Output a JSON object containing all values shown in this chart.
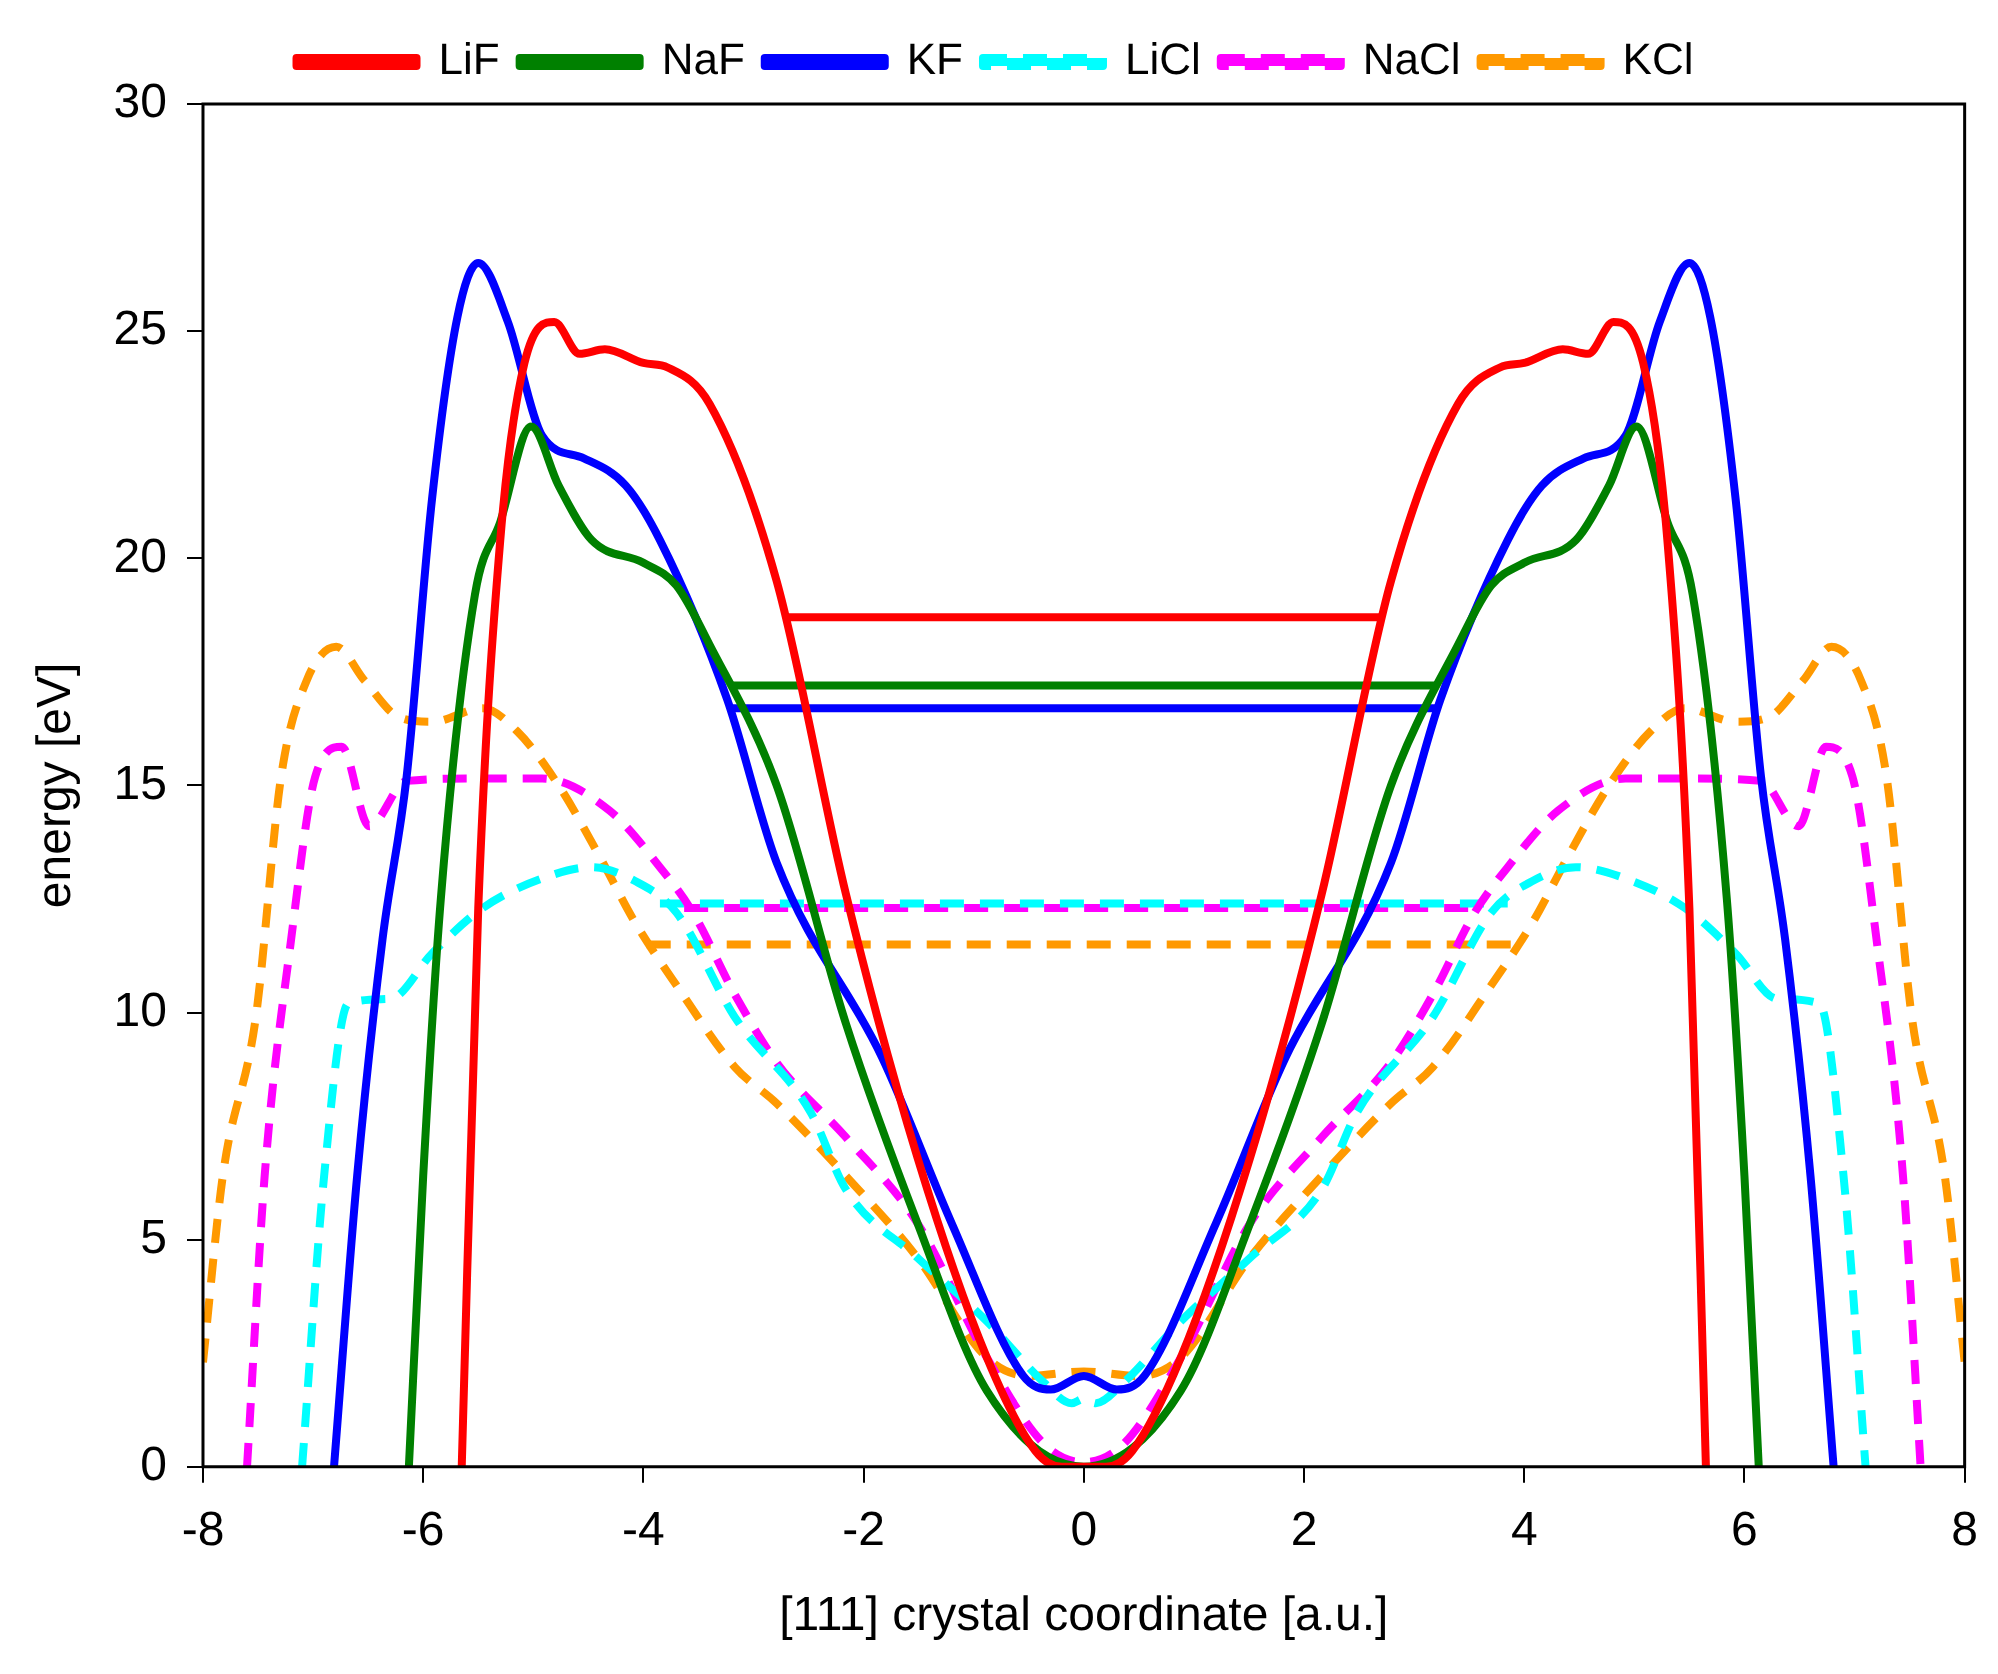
{
  "chart_data": {
    "type": "line",
    "xlabel": "[111] crystal coordinate [a.u.]",
    "ylabel": "energy [eV]",
    "xlim": [
      -8,
      8
    ],
    "xticks": [
      -8,
      -6,
      -4,
      -2,
      0,
      2,
      4,
      6,
      8
    ],
    "ylim": [
      0,
      30
    ],
    "yticks": [
      0,
      5,
      10,
      15,
      20,
      25,
      30
    ],
    "grid": false,
    "legend": "top",
    "marker": "none",
    "series": [
      {
        "name": "LiF",
        "color": "#ff0000",
        "line_style": "solid",
        "x": [
          -5.65,
          -5.5,
          -5.3,
          -5.08,
          -4.81,
          -4.58,
          -4.35,
          -4.0,
          -3.78,
          -3.4,
          -2.79,
          -2.16,
          -1.51,
          -0.88,
          -0.44,
          -0.2,
          0,
          0.2,
          0.44,
          0.88,
          1.51,
          2.16,
          2.79,
          3.4,
          3.78,
          4.0,
          4.35,
          4.58,
          4.81,
          5.08,
          5.3,
          5.5,
          5.65
        ],
        "values": [
          0,
          12.3,
          20.4,
          24.3,
          25.2,
          24.5,
          24.6,
          24.3,
          24.2,
          23.4,
          19.5,
          12.6,
          6.8,
          2.4,
          0.35,
          0,
          0,
          0,
          0.35,
          2.4,
          6.8,
          12.6,
          19.5,
          23.4,
          24.2,
          24.3,
          24.6,
          24.5,
          25.2,
          24.3,
          20.4,
          12.3,
          0
        ]
      },
      {
        "name": "NaF",
        "color": "#008000",
        "line_style": "solid",
        "x": [
          -6.13,
          -6.0,
          -5.84,
          -5.53,
          -5.3,
          -5.02,
          -4.77,
          -4.47,
          -4.0,
          -3.7,
          -3.4,
          -2.79,
          -2.16,
          -1.51,
          -0.88,
          0,
          0.88,
          1.51,
          2.16,
          2.79,
          3.4,
          3.7,
          4.0,
          4.47,
          4.77,
          5.02,
          5.3,
          5.53,
          5.84,
          6.0,
          6.13
        ],
        "values": [
          0,
          6.4,
          12.5,
          19.2,
          20.8,
          22.9,
          21.6,
          20.4,
          19.9,
          19.4,
          18.1,
          15.0,
          9.75,
          5.36,
          1.67,
          0,
          1.67,
          5.36,
          9.75,
          15.0,
          18.1,
          19.4,
          19.9,
          20.4,
          21.6,
          22.9,
          20.8,
          19.2,
          12.5,
          6.4,
          0
        ]
      },
      {
        "name": "KF",
        "color": "#0000ff",
        "line_style": "solid",
        "x": [
          -6.81,
          -6.6,
          -6.37,
          -6.15,
          -5.92,
          -5.69,
          -5.5,
          -5.23,
          -4.92,
          -4.54,
          -4.16,
          -3.85,
          -3.24,
          -2.79,
          -1.83,
          -1.2,
          -0.55,
          -0.3,
          0,
          0.3,
          0.55,
          1.2,
          1.83,
          2.79,
          3.24,
          3.85,
          4.16,
          4.54,
          4.92,
          5.23,
          5.5,
          5.69,
          5.92,
          6.15,
          6.37,
          6.6,
          6.81
        ],
        "values": [
          0,
          6.4,
          11.6,
          15.2,
          21.3,
          25.3,
          26.5,
          25.2,
          22.7,
          22.2,
          21.6,
          20.4,
          16.9,
          13.3,
          9.0,
          5.36,
          2.0,
          1.7,
          2.0,
          1.7,
          2.0,
          5.36,
          9.0,
          13.3,
          16.9,
          20.4,
          21.6,
          22.2,
          22.7,
          25.2,
          26.5,
          25.3,
          21.3,
          15.2,
          11.6,
          6.4,
          0
        ]
      },
      {
        "name": "LiCl",
        "color": "#00ffff",
        "line_style": "dashed",
        "x": [
          -7.1,
          -6.9,
          -6.68,
          -6.3,
          -5.92,
          -5.46,
          -4.92,
          -4.47,
          -4.08,
          -3.7,
          -3.17,
          -2.48,
          -2.16,
          -1.51,
          -0.88,
          -0.36,
          -0.11,
          0,
          0.11,
          0.36,
          0.88,
          1.51,
          2.16,
          2.48,
          3.17,
          3.7,
          4.08,
          4.47,
          4.92,
          5.46,
          5.92,
          6.3,
          6.68,
          6.9,
          7.1
        ],
        "values": [
          0,
          6.4,
          10.2,
          10.3,
          11.3,
          12.3,
          12.95,
          13.2,
          12.9,
          12.2,
          9.9,
          7.8,
          6.1,
          4.6,
          3.2,
          1.85,
          1.4,
          1.5,
          1.4,
          1.85,
          3.2,
          4.6,
          6.1,
          7.8,
          9.9,
          12.2,
          12.9,
          13.2,
          12.95,
          12.3,
          11.3,
          10.3,
          10.2,
          6.4,
          0
        ]
      },
      {
        "name": "NaCl",
        "color": "#ff00ff",
        "line_style": "dashed",
        "x": [
          -7.6,
          -7.44,
          -7.2,
          -6.98,
          -6.74,
          -6.49,
          -6.15,
          -5.53,
          -4.92,
          -4.31,
          -3.85,
          -3.55,
          -3.17,
          -2.79,
          -2.16,
          -1.51,
          -0.88,
          -0.36,
          0,
          0.36,
          0.88,
          1.51,
          2.16,
          2.79,
          3.17,
          3.55,
          3.85,
          4.31,
          4.92,
          5.53,
          6.15,
          6.49,
          6.74,
          6.98,
          7.2,
          7.44,
          7.6
        ],
        "values": [
          0,
          6.4,
          11.6,
          15.2,
          15.85,
          14.1,
          15.1,
          15.15,
          15.15,
          14.45,
          13.2,
          12.2,
          10.4,
          8.9,
          7.25,
          5.36,
          2.4,
          0.5,
          0.1,
          0.5,
          2.4,
          5.36,
          7.25,
          8.9,
          10.4,
          12.2,
          13.2,
          14.45,
          15.15,
          15.15,
          15.1,
          14.1,
          15.85,
          15.2,
          11.6,
          6.4,
          0
        ]
      },
      {
        "name": "KCl",
        "color": "#ff9900",
        "line_style": "dashed",
        "x": [
          -8,
          -7.82,
          -7.52,
          -7.29,
          -7.06,
          -6.79,
          -6.53,
          -6.22,
          -5.92,
          -5.46,
          -5.15,
          -4.77,
          -4.39,
          -4.08,
          -3.7,
          -3.17,
          -2.79,
          -2.16,
          -1.51,
          -0.88,
          -0.5,
          0,
          0.5,
          0.88,
          1.51,
          2.16,
          2.79,
          3.17,
          3.7,
          4.08,
          4.39,
          4.77,
          5.15,
          5.46,
          5.92,
          6.22,
          6.53,
          6.79,
          7.06,
          7.29,
          7.52,
          7.82,
          8
        ],
        "values": [
          2.3,
          6.4,
          9.9,
          15.2,
          17.3,
          18.05,
          17.3,
          16.5,
          16.4,
          16.7,
          16.2,
          15.0,
          13.4,
          12.0,
          10.6,
          8.8,
          8.0,
          6.4,
          4.6,
          2.4,
          2.0,
          2.1,
          2.0,
          2.4,
          4.6,
          6.4,
          8.0,
          8.8,
          10.6,
          12.0,
          13.4,
          15.0,
          16.2,
          16.7,
          16.4,
          16.5,
          17.3,
          18.05,
          17.3,
          15.2,
          9.9,
          6.4,
          2.3
        ]
      },
      {
        "color": "#ff0000",
        "line_style": "solid",
        "x": [
          -2.7,
          2.7
        ],
        "values": [
          18.7,
          18.7
        ]
      },
      {
        "color": "#008000",
        "line_style": "solid",
        "x": [
          -3.2,
          3.2
        ],
        "values": [
          17.2,
          17.2
        ]
      },
      {
        "color": "#0000ff",
        "line_style": "solid",
        "x": [
          -3.2,
          3.2
        ],
        "values": [
          16.7,
          16.7
        ]
      },
      {
        "color": "#00ffff",
        "line_style": "dashed",
        "x": [
          -3.85,
          3.85
        ],
        "values": [
          12.4,
          12.4
        ]
      },
      {
        "color": "#ff00ff",
        "line_style": "dashed",
        "x": [
          -3.63,
          3.63
        ],
        "values": [
          12.3,
          12.3
        ]
      },
      {
        "color": "#ff9900",
        "line_style": "dashed",
        "x": [
          -3.97,
          3.97
        ],
        "values": [
          11.5,
          11.5
        ]
      }
    ]
  }
}
